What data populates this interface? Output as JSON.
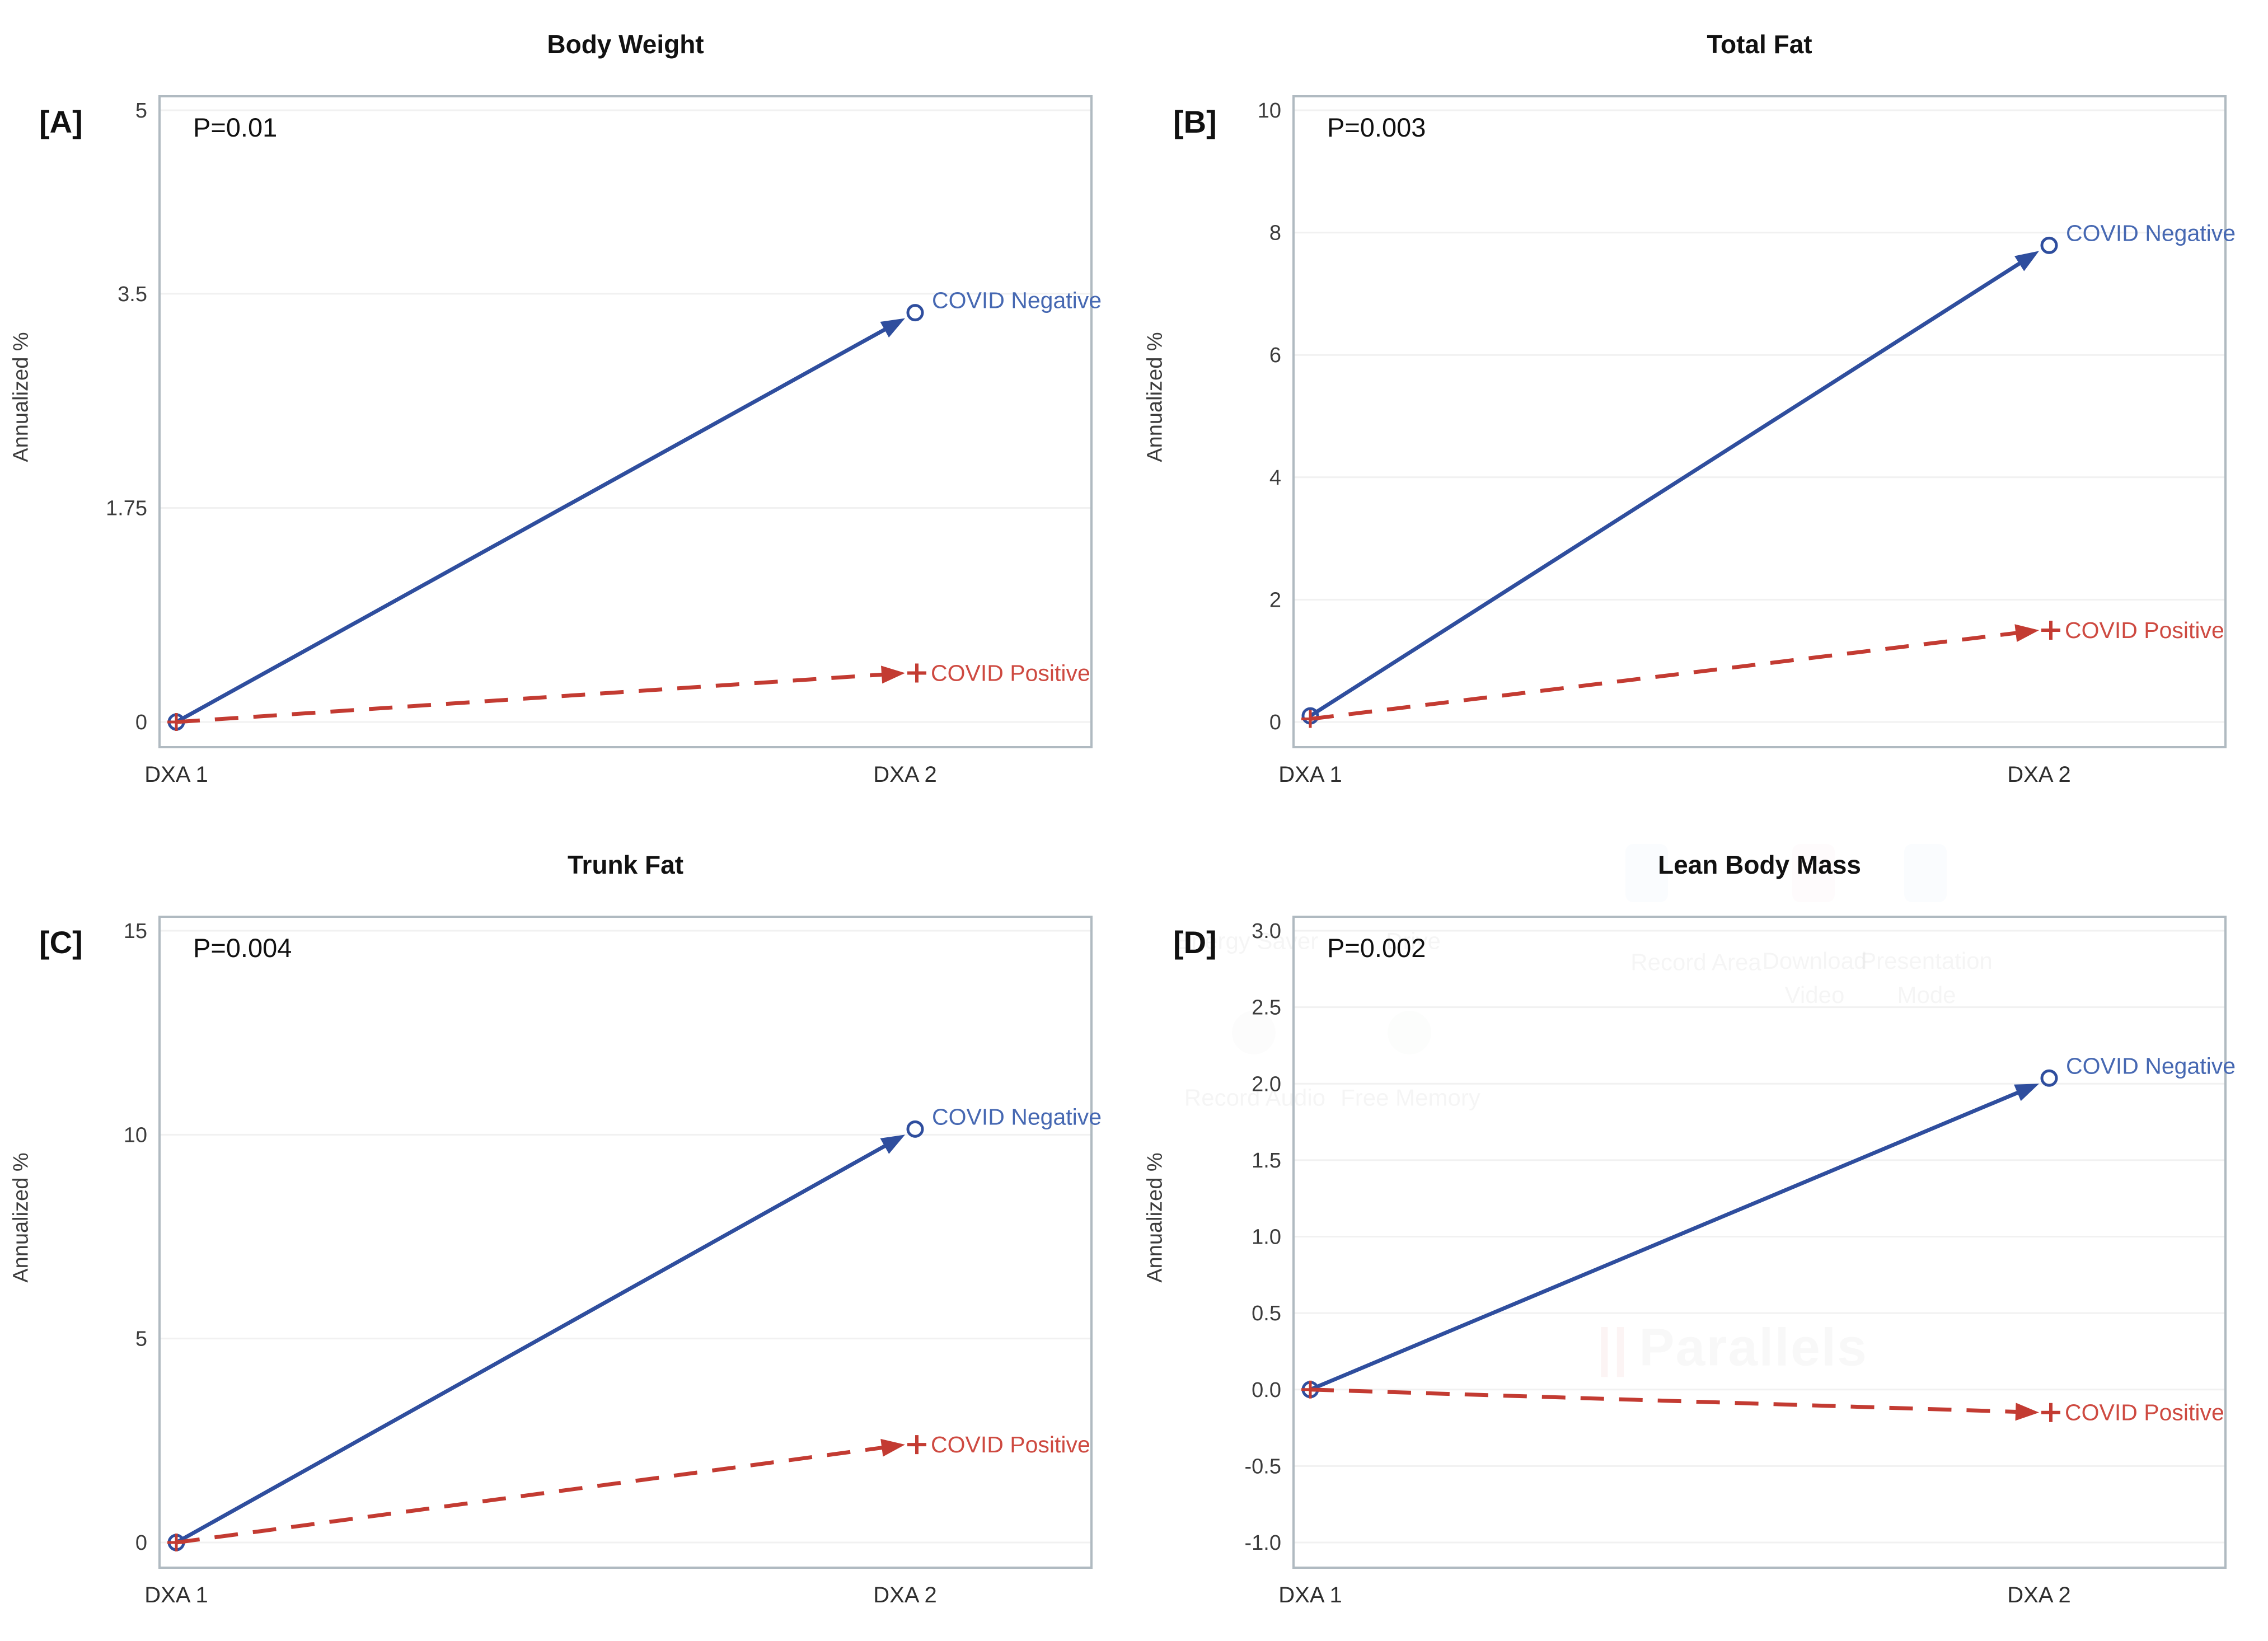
{
  "figure": {
    "kind": "2x2 panel line-chart figure",
    "x_axis_categories": [
      "DXA 1",
      "DXA 2"
    ],
    "series_names": [
      "COVID Negative",
      "COVID Positive"
    ]
  },
  "theme": {
    "negative_line_color": "#2F4E9E",
    "negative_label_color": "#4668B2",
    "positive_line_color": "#C33B32",
    "positive_label_color": "#CE4A41",
    "grid_color": "#F1F1F1",
    "frame_color": "#B0BAC1",
    "tick_text_color": "#3C3C3C",
    "axis_text_color": "#2E2E2E"
  },
  "chart_data": [
    {
      "type": "line",
      "panel_label": "[A]",
      "title": "Body Weight",
      "p_value": "P=0.01",
      "ylabel": "Annualized %",
      "categories": [
        "DXA 1",
        "DXA 2"
      ],
      "ylim": [
        0,
        5
      ],
      "yticks": [
        5,
        3.5,
        1.75,
        0
      ],
      "ytick_labels": [
        "5",
        "3.5",
        "1.75",
        "0"
      ],
      "grid": true,
      "legend_position": "line-end-labels",
      "series": [
        {
          "name": "COVID Negative",
          "values": [
            0,
            3.3
          ],
          "style": "solid"
        },
        {
          "name": "COVID Positive",
          "values": [
            0,
            0.4
          ],
          "style": "dashed"
        }
      ]
    },
    {
      "type": "line",
      "panel_label": "[B]",
      "title": "Total Fat",
      "p_value": "P=0.003",
      "ylabel": "Annualized %",
      "categories": [
        "DXA 1",
        "DXA 2"
      ],
      "ylim": [
        0,
        10
      ],
      "yticks": [
        10,
        8,
        6,
        4,
        2,
        0
      ],
      "ytick_labels": [
        "10",
        "8",
        "6",
        "4",
        "2",
        "0"
      ],
      "grid": true,
      "legend_position": "line-end-labels",
      "series": [
        {
          "name": "COVID Negative",
          "values": [
            0.1,
            7.7
          ],
          "style": "solid"
        },
        {
          "name": "COVID Positive",
          "values": [
            0.05,
            1.5
          ],
          "style": "dashed"
        }
      ]
    },
    {
      "type": "line",
      "panel_label": "[C]",
      "title": "Trunk Fat",
      "p_value": "P=0.004",
      "ylabel": "Annualized %",
      "categories": [
        "DXA 1",
        "DXA 2"
      ],
      "ylim": [
        0,
        15
      ],
      "yticks": [
        15,
        10,
        5,
        0
      ],
      "ytick_labels": [
        "15",
        "10",
        "5",
        "0"
      ],
      "grid": true,
      "legend_position": "line-end-labels",
      "series": [
        {
          "name": "COVID Negative",
          "values": [
            0,
            10.0
          ],
          "style": "solid"
        },
        {
          "name": "COVID Positive",
          "values": [
            0,
            2.4
          ],
          "style": "dashed"
        }
      ]
    },
    {
      "type": "line",
      "panel_label": "[D]",
      "title": "Lean Body Mass",
      "p_value": "P=0.002",
      "ylabel": "Annualized %",
      "categories": [
        "DXA 1",
        "DXA 2"
      ],
      "ylim": [
        -1.0,
        3.0
      ],
      "yticks": [
        3.0,
        2.5,
        2.0,
        1.5,
        1.0,
        0.5,
        0.0,
        -0.5,
        -1.0
      ],
      "ytick_labels": [
        "3.0",
        "2.5",
        "2.0",
        "1.5",
        "1.0",
        "0.5",
        "0.0",
        "-0.5",
        "-1.0"
      ],
      "grid": true,
      "legend_position": "line-end-labels",
      "series": [
        {
          "name": "COVID Negative",
          "values": [
            0,
            2.0
          ],
          "style": "solid"
        },
        {
          "name": "COVID Positive",
          "values": [
            0,
            -0.15
          ],
          "style": "dashed"
        }
      ]
    }
  ],
  "background_artifacts": {
    "watermark_bars": "||",
    "watermark_name": "Parallels",
    "energy_saver": "Energy Saver",
    "drive": "Drive",
    "record_area": "Record Area",
    "download_video": "Download Video",
    "presentation_mode": "Presentation Mode",
    "record_audio": "Record Audio",
    "free_memory": "Free Memory"
  }
}
